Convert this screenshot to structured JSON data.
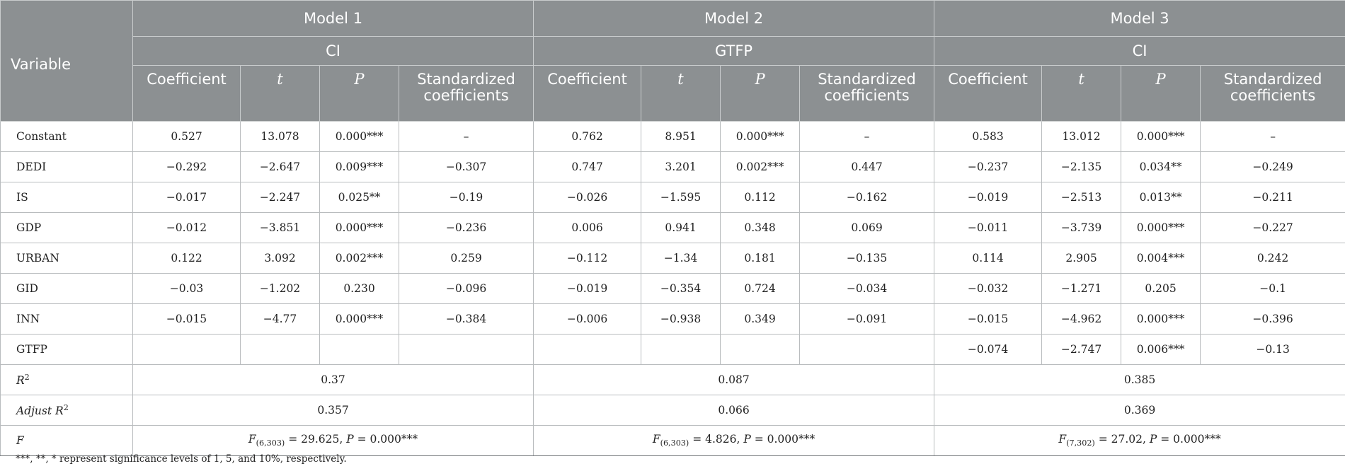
{
  "table": {
    "variable_header": "Variable",
    "models": [
      {
        "name": "Model 1",
        "dependent": "CI"
      },
      {
        "name": "Model 2",
        "dependent": "GTFP"
      },
      {
        "name": "Model 3",
        "dependent": "CI"
      }
    ],
    "columns": {
      "coefficient": "Coefficient",
      "t": "t",
      "p": "P",
      "standardized": "Standardized coefficients"
    },
    "rows": [
      {
        "label": "Constant",
        "cells": [
          "0.527",
          "13.078",
          "0.000***",
          "–",
          "0.762",
          "8.951",
          "0.000***",
          "–",
          "0.583",
          "13.012",
          "0.000***",
          "–"
        ]
      },
      {
        "label": "DEDI",
        "cells": [
          "−0.292",
          "−2.647",
          "0.009***",
          "−0.307",
          "0.747",
          "3.201",
          "0.002***",
          "0.447",
          "−0.237",
          "−2.135",
          "0.034**",
          "−0.249"
        ]
      },
      {
        "label": "IS",
        "cells": [
          "−0.017",
          "−2.247",
          "0.025**",
          "−0.19",
          "−0.026",
          "−1.595",
          "0.112",
          "−0.162",
          "−0.019",
          "−2.513",
          "0.013**",
          "−0.211"
        ]
      },
      {
        "label": "GDP",
        "cells": [
          "−0.012",
          "−3.851",
          "0.000***",
          "−0.236",
          "0.006",
          "0.941",
          "0.348",
          "0.069",
          "−0.011",
          "−3.739",
          "0.000***",
          "−0.227"
        ]
      },
      {
        "label": "URBAN",
        "cells": [
          "0.122",
          "3.092",
          "0.002***",
          "0.259",
          "−0.112",
          "−1.34",
          "0.181",
          "−0.135",
          "0.114",
          "2.905",
          "0.004***",
          "0.242"
        ]
      },
      {
        "label": "GID",
        "cells": [
          "−0.03",
          "−1.202",
          "0.230",
          "−0.096",
          "−0.019",
          "−0.354",
          "0.724",
          "−0.034",
          "−0.032",
          "−1.271",
          "0.205",
          "−0.1"
        ]
      },
      {
        "label": "INN",
        "cells": [
          "−0.015",
          "−4.77",
          "0.000***",
          "−0.384",
          "−0.006",
          "−0.938",
          "0.349",
          "−0.091",
          "−0.015",
          "−4.962",
          "0.000***",
          "−0.396"
        ]
      },
      {
        "label": "GTFP",
        "cells": [
          "",
          "",
          "",
          "",
          "",
          "",
          "",
          "",
          "−0.074",
          "−2.747",
          "0.006***",
          "−0.13"
        ]
      }
    ],
    "r2": {
      "label": "R",
      "label_sup": "2",
      "values": [
        "0.37",
        "0.087",
        "0.385"
      ]
    },
    "adj_r2": {
      "label": "Adjust R",
      "label_sup": "2",
      "values": [
        "0.357",
        "0.066",
        "0.369"
      ]
    },
    "f": {
      "label": "F",
      "values": [
        {
          "letter": "F",
          "sub": "(6,303)",
          "rest": " = 29.625, ",
          "p_letter": "P",
          "p_rest": " = 0.000***"
        },
        {
          "letter": "F",
          "sub": "(6,303)",
          "rest": " = 4.826, ",
          "p_letter": "P",
          "p_rest": " = 0.000***"
        },
        {
          "letter": "F",
          "sub": "(7,302)",
          "rest": " = 27.02, ",
          "p_letter": "P",
          "p_rest": " = 0.000***"
        }
      ]
    }
  },
  "footnote": "***, **, * represent significance levels of 1, 5, and 10%, respectively."
}
